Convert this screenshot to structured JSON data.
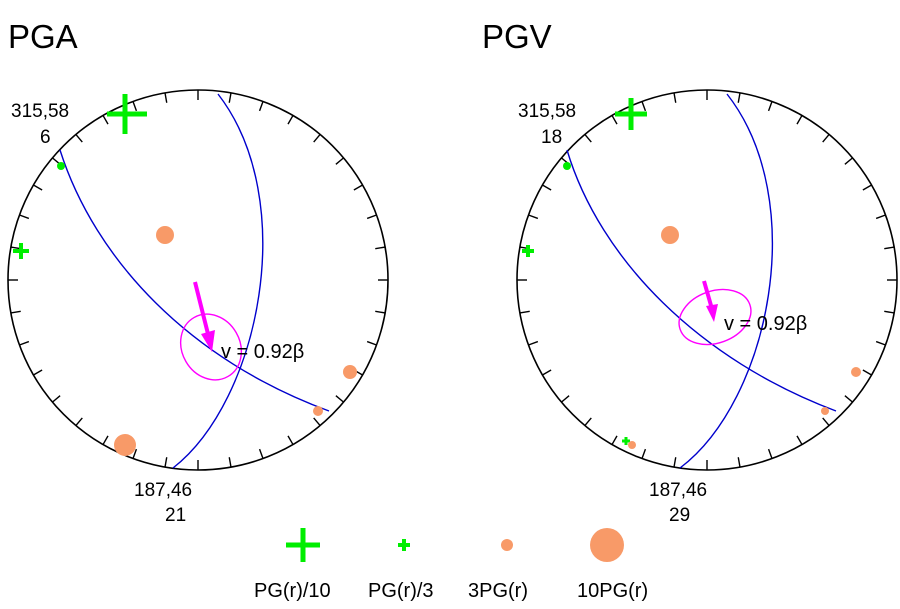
{
  "colors": {
    "green": "#00ee00",
    "orange": "#f89a68",
    "magenta": "#ff00ff",
    "blue": "#0000cc",
    "black": "#000000"
  },
  "panels": [
    {
      "id": "pga",
      "title": "PGA",
      "top_label": "315,58",
      "top_count": "6",
      "bottom_label": "187,46",
      "bottom_count": "21",
      "velocity_label": "v = 0.92β"
    },
    {
      "id": "pgv",
      "title": "PGV",
      "top_label": "315,58",
      "top_count": "18",
      "bottom_label": "187,46",
      "bottom_count": "29",
      "velocity_label": "v = 0.92β"
    }
  ],
  "legend": [
    {
      "label": "PG(r)/10",
      "icon": "plus-large-icon"
    },
    {
      "label": "PG(r)/3",
      "icon": "plus-small-icon"
    },
    {
      "label": "3PG(r)",
      "icon": "circle-small-icon"
    },
    {
      "label": "10PG(r)",
      "icon": "circle-large-icon"
    }
  ]
}
